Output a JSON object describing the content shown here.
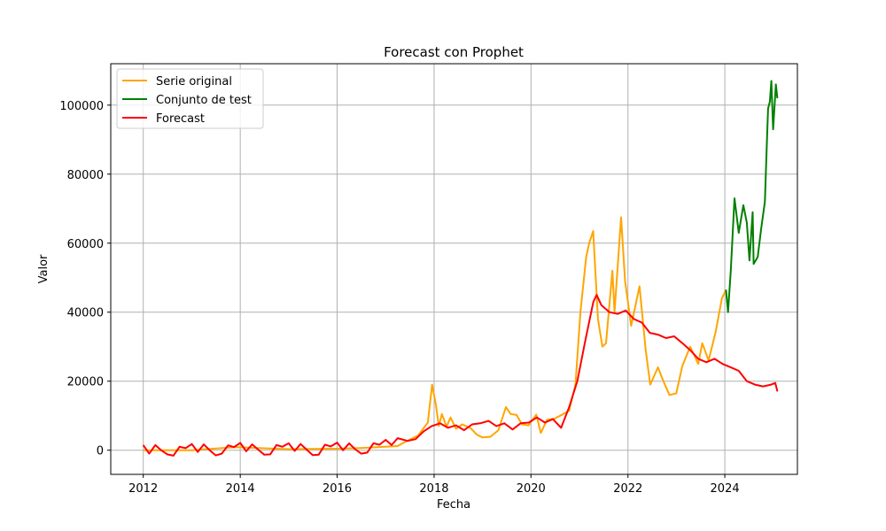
{
  "chart_data": {
    "type": "line",
    "title": "Forecast con Prophet",
    "xlabel": "Fecha",
    "ylabel": "Valor",
    "xlim": [
      "2011-05-01",
      "2025-07-01"
    ],
    "ylim": [
      -7000,
      112000
    ],
    "x_ticks": [
      "2012",
      "2014",
      "2016",
      "2018",
      "2020",
      "2022",
      "2024"
    ],
    "y_ticks": [
      "0",
      "20000",
      "40000",
      "60000",
      "80000",
      "100000"
    ],
    "grid": true,
    "legend_position": "top-left",
    "series": [
      {
        "name": "Serie original",
        "color": "#ffa500",
        "points": [
          [
            "2012-01-01",
            5
          ],
          [
            "2013-01-01",
            13
          ],
          [
            "2013-12-01",
            900
          ],
          [
            "2014-06-01",
            600
          ],
          [
            "2015-01-01",
            300
          ],
          [
            "2016-01-01",
            430
          ],
          [
            "2016-07-01",
            650
          ],
          [
            "2017-01-01",
            1000
          ],
          [
            "2017-04-01",
            1200
          ],
          [
            "2017-06-01",
            2500
          ],
          [
            "2017-09-01",
            4200
          ],
          [
            "2017-11-15",
            8000
          ],
          [
            "2017-12-17",
            19000
          ],
          [
            "2018-01-15",
            13000
          ],
          [
            "2018-02-05",
            7000
          ],
          [
            "2018-03-01",
            10500
          ],
          [
            "2018-04-05",
            6800
          ],
          [
            "2018-05-05",
            9500
          ],
          [
            "2018-06-15",
            6200
          ],
          [
            "2018-08-01",
            7500
          ],
          [
            "2018-10-01",
            6500
          ],
          [
            "2018-11-20",
            4500
          ],
          [
            "2019-01-01",
            3700
          ],
          [
            "2019-03-01",
            3900
          ],
          [
            "2019-05-01",
            5800
          ],
          [
            "2019-06-26",
            12500
          ],
          [
            "2019-08-01",
            10500
          ],
          [
            "2019-09-15",
            10200
          ],
          [
            "2019-10-25",
            7500
          ],
          [
            "2019-12-15",
            7200
          ],
          [
            "2020-02-10",
            10300
          ],
          [
            "2020-03-15",
            5000
          ],
          [
            "2020-05-01",
            8800
          ],
          [
            "2020-07-01",
            9200
          ],
          [
            "2020-09-01",
            10500
          ],
          [
            "2020-10-15",
            11500
          ],
          [
            "2020-12-01",
            19000
          ],
          [
            "2021-01-08",
            40000
          ],
          [
            "2021-02-20",
            56000
          ],
          [
            "2021-03-15",
            60000
          ],
          [
            "2021-04-14",
            63500
          ],
          [
            "2021-05-20",
            38000
          ],
          [
            "2021-06-22",
            30000
          ],
          [
            "2021-07-20",
            31000
          ],
          [
            "2021-09-06",
            52000
          ],
          [
            "2021-09-22",
            40000
          ],
          [
            "2021-11-10",
            67500
          ],
          [
            "2021-12-10",
            49000
          ],
          [
            "2022-01-25",
            36000
          ],
          [
            "2022-03-29",
            47500
          ],
          [
            "2022-05-15",
            29000
          ],
          [
            "2022-06-18",
            19000
          ],
          [
            "2022-08-15",
            24000
          ],
          [
            "2022-10-01",
            19500
          ],
          [
            "2022-11-10",
            16000
          ],
          [
            "2022-12-31",
            16500
          ],
          [
            "2023-02-15",
            24500
          ],
          [
            "2023-04-15",
            30000
          ],
          [
            "2023-06-15",
            25000
          ],
          [
            "2023-07-15",
            31000
          ],
          [
            "2023-09-01",
            26000
          ],
          [
            "2023-10-25",
            34500
          ],
          [
            "2023-12-10",
            44000
          ],
          [
            "2024-01-10",
            46500
          ]
        ]
      },
      {
        "name": "Conjunto de test",
        "color": "#008000",
        "points": [
          [
            "2024-01-10",
            46500
          ],
          [
            "2024-01-25",
            40000
          ],
          [
            "2024-02-15",
            52000
          ],
          [
            "2024-03-14",
            73000
          ],
          [
            "2024-04-15",
            63000
          ],
          [
            "2024-05-20",
            71000
          ],
          [
            "2024-06-15",
            66000
          ],
          [
            "2024-07-05",
            55000
          ],
          [
            "2024-07-29",
            69000
          ],
          [
            "2024-08-05",
            54000
          ],
          [
            "2024-09-05",
            56000
          ],
          [
            "2024-09-30",
            64000
          ],
          [
            "2024-10-29",
            72000
          ],
          [
            "2024-11-12",
            88000
          ],
          [
            "2024-11-22",
            99000
          ],
          [
            "2024-12-05",
            101000
          ],
          [
            "2024-12-17",
            107000
          ],
          [
            "2024-12-30",
            93000
          ],
          [
            "2025-01-20",
            106000
          ],
          [
            "2025-01-31",
            102000
          ]
        ]
      },
      {
        "name": "Forecast",
        "color": "#ff0000",
        "points": [
          [
            "2012-01-01",
            1500
          ],
          [
            "2012-02-15",
            -1000
          ],
          [
            "2012-04-01",
            1500
          ],
          [
            "2012-05-15",
            0
          ],
          [
            "2012-07-01",
            -1200
          ],
          [
            "2012-08-15",
            -1600
          ],
          [
            "2012-10-01",
            1000
          ],
          [
            "2012-11-15",
            600
          ],
          [
            "2013-01-01",
            1800
          ],
          [
            "2013-02-15",
            -500
          ],
          [
            "2013-04-01",
            1700
          ],
          [
            "2013-05-15",
            0
          ],
          [
            "2013-07-01",
            -1500
          ],
          [
            "2013-08-15",
            -1000
          ],
          [
            "2013-10-01",
            1400
          ],
          [
            "2013-11-15",
            900
          ],
          [
            "2014-01-01",
            2100
          ],
          [
            "2014-02-15",
            -300
          ],
          [
            "2014-04-01",
            1700
          ],
          [
            "2014-05-15",
            200
          ],
          [
            "2014-07-01",
            -1300
          ],
          [
            "2014-08-15",
            -1200
          ],
          [
            "2014-10-01",
            1500
          ],
          [
            "2014-11-15",
            1000
          ],
          [
            "2015-01-01",
            2000
          ],
          [
            "2015-02-15",
            -200
          ],
          [
            "2015-04-01",
            1800
          ],
          [
            "2015-05-15",
            200
          ],
          [
            "2015-07-01",
            -1400
          ],
          [
            "2015-08-15",
            -1300
          ],
          [
            "2015-10-01",
            1600
          ],
          [
            "2015-11-15",
            1100
          ],
          [
            "2016-01-01",
            2200
          ],
          [
            "2016-02-15",
            0
          ],
          [
            "2016-04-01",
            2000
          ],
          [
            "2016-05-15",
            300
          ],
          [
            "2016-07-01",
            -1000
          ],
          [
            "2016-08-15",
            -700
          ],
          [
            "2016-10-01",
            2000
          ],
          [
            "2016-11-15",
            1600
          ],
          [
            "2017-01-01",
            3000
          ],
          [
            "2017-02-15",
            1500
          ],
          [
            "2017-04-01",
            3500
          ],
          [
            "2017-06-15",
            2700
          ],
          [
            "2017-08-15",
            3200
          ],
          [
            "2017-10-15",
            5500
          ],
          [
            "2017-12-15",
            7000
          ],
          [
            "2018-02-15",
            7800
          ],
          [
            "2018-04-15",
            6500
          ],
          [
            "2018-06-15",
            7200
          ],
          [
            "2018-08-15",
            5800
          ],
          [
            "2018-10-15",
            7500
          ],
          [
            "2018-12-15",
            7800
          ],
          [
            "2019-02-15",
            8500
          ],
          [
            "2019-04-15",
            7000
          ],
          [
            "2019-06-15",
            7800
          ],
          [
            "2019-08-15",
            6000
          ],
          [
            "2019-10-15",
            7800
          ],
          [
            "2019-12-15",
            8000
          ],
          [
            "2020-02-15",
            9500
          ],
          [
            "2020-04-15",
            8000
          ],
          [
            "2020-06-15",
            9000
          ],
          [
            "2020-08-15",
            6500
          ],
          [
            "2020-10-15",
            12500
          ],
          [
            "2020-12-15",
            20000
          ],
          [
            "2021-02-15",
            32000
          ],
          [
            "2021-04-15",
            43000
          ],
          [
            "2021-05-10",
            45000
          ],
          [
            "2021-06-15",
            42000
          ],
          [
            "2021-08-15",
            40000
          ],
          [
            "2021-10-15",
            39500
          ],
          [
            "2021-12-15",
            40500
          ],
          [
            "2022-02-15",
            38000
          ],
          [
            "2022-04-15",
            37000
          ],
          [
            "2022-06-15",
            34000
          ],
          [
            "2022-08-15",
            33500
          ],
          [
            "2022-10-15",
            32500
          ],
          [
            "2022-12-15",
            33000
          ],
          [
            "2023-02-15",
            31000
          ],
          [
            "2023-04-15",
            29000
          ],
          [
            "2023-06-15",
            26500
          ],
          [
            "2023-08-15",
            25500
          ],
          [
            "2023-10-15",
            26500
          ],
          [
            "2023-12-15",
            25000
          ],
          [
            "2024-02-15",
            24000
          ],
          [
            "2024-04-15",
            23000
          ],
          [
            "2024-06-15",
            20000
          ],
          [
            "2024-08-15",
            19000
          ],
          [
            "2024-10-15",
            18500
          ],
          [
            "2024-12-15",
            19000
          ],
          [
            "2025-01-15",
            19500
          ],
          [
            "2025-02-01",
            17000
          ]
        ]
      }
    ]
  }
}
